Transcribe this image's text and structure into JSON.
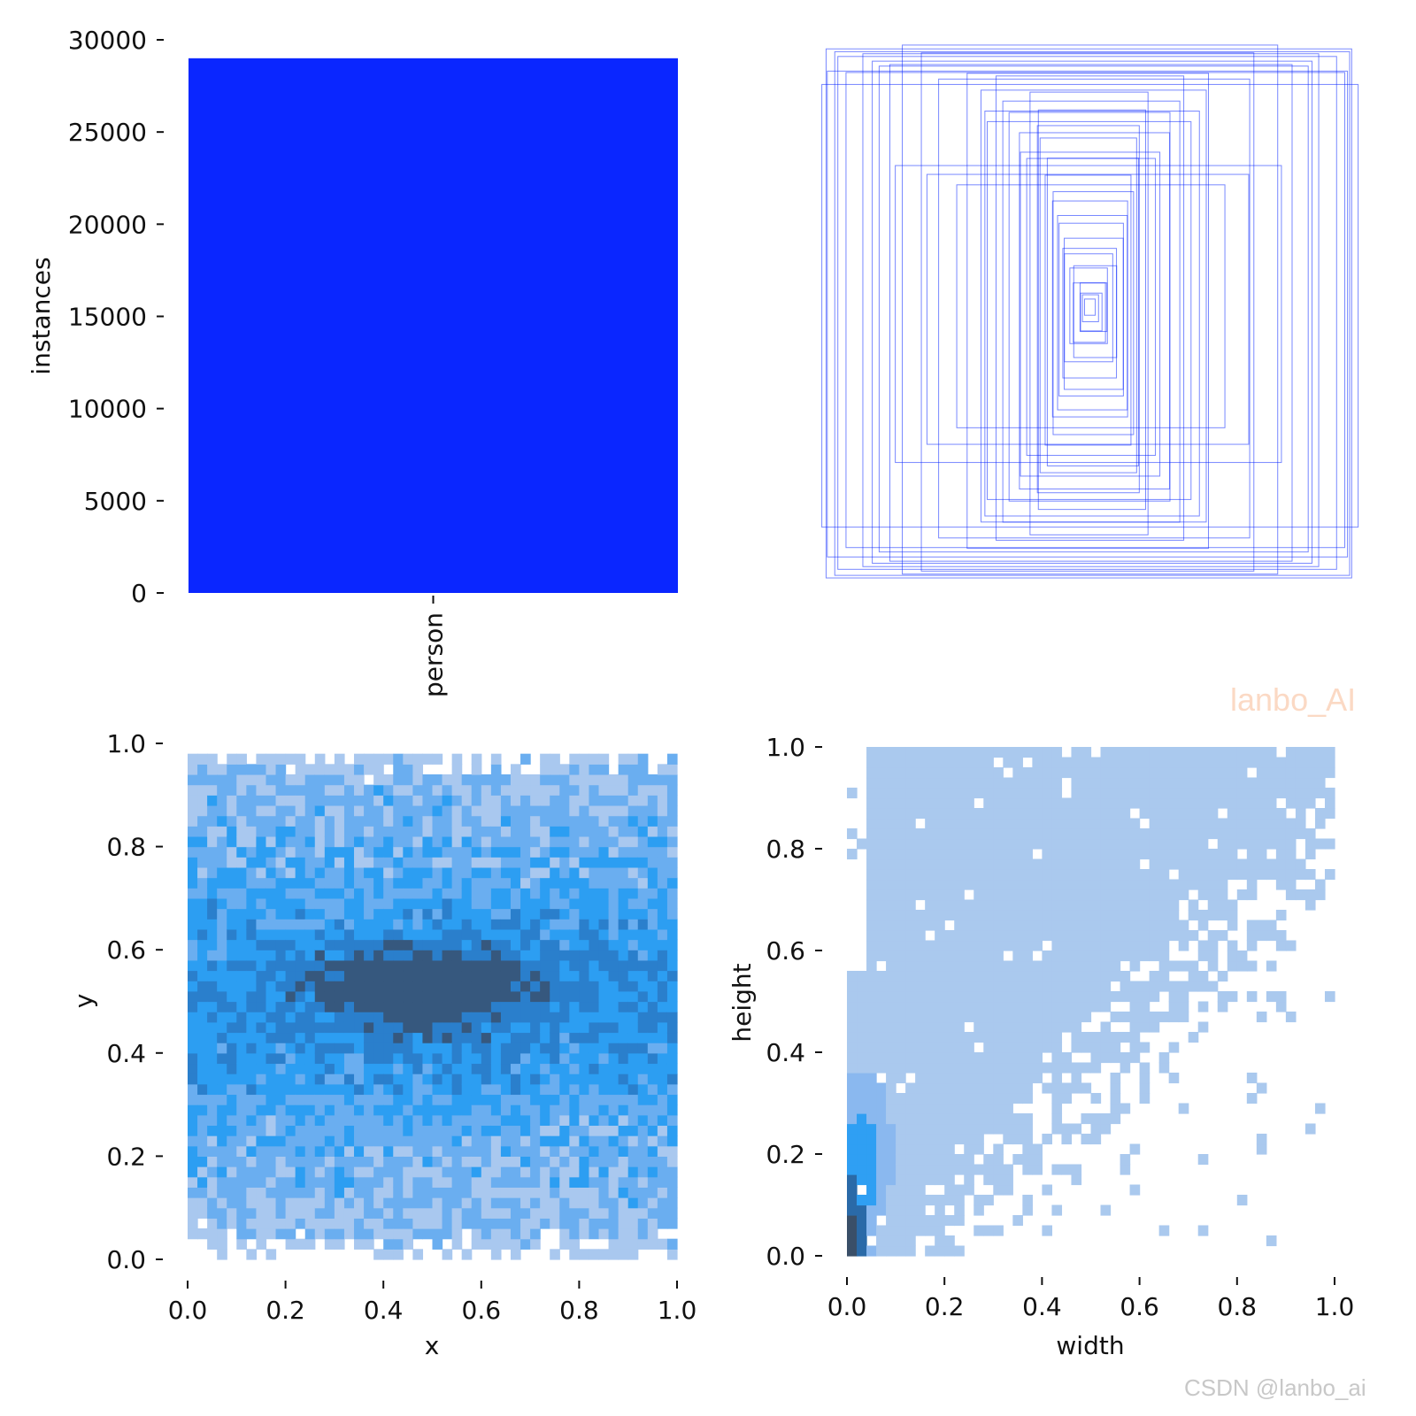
{
  "watermarks": {
    "corner_tag": "lanbo_AI",
    "footer": "CSDN @lanbo_ai"
  },
  "chart_data": [
    {
      "panel": "class-histogram",
      "type": "bar",
      "categories": [
        "person"
      ],
      "values": [
        29000
      ],
      "ylabel": "instances",
      "xlabel": "",
      "ylim": [
        0,
        30000
      ],
      "yticks": [
        0,
        5000,
        10000,
        15000,
        20000,
        25000,
        30000
      ],
      "bar_color": "#0a26ff",
      "grid": false
    },
    {
      "panel": "box-overlay",
      "type": "scatter",
      "note_series": "overlaid bounding boxes centered in panel",
      "boxes_wh": [
        [
          0.98,
          0.98
        ],
        [
          0.96,
          0.97
        ],
        [
          0.93,
          0.95
        ],
        [
          1.0,
          0.82
        ],
        [
          0.97,
          0.9
        ],
        [
          0.93,
          0.88
        ],
        [
          0.85,
          0.95
        ],
        [
          0.82,
          0.93
        ],
        [
          0.8,
          0.9
        ],
        [
          0.75,
          0.92
        ],
        [
          0.7,
          0.98
        ],
        [
          0.62,
          0.96
        ],
        [
          0.58,
          0.85
        ],
        [
          0.72,
          0.55
        ],
        [
          0.6,
          0.5
        ],
        [
          0.5,
          0.45
        ],
        [
          0.45,
          0.88
        ],
        [
          0.42,
          0.8
        ],
        [
          0.4,
          0.75
        ],
        [
          0.38,
          0.7
        ],
        [
          0.35,
          0.86
        ],
        [
          0.33,
          0.78
        ],
        [
          0.3,
          0.72
        ],
        [
          0.28,
          0.66
        ],
        [
          0.26,
          0.6
        ],
        [
          0.24,
          0.55
        ],
        [
          0.22,
          0.82
        ],
        [
          0.2,
          0.74
        ],
        [
          0.19,
          0.68
        ],
        [
          0.18,
          0.62
        ],
        [
          0.17,
          0.57
        ],
        [
          0.16,
          0.5
        ],
        [
          0.15,
          0.45
        ],
        [
          0.14,
          0.4
        ],
        [
          0.13,
          0.36
        ],
        [
          0.12,
          0.32
        ],
        [
          0.11,
          0.28
        ],
        [
          0.1,
          0.24
        ],
        [
          0.09,
          0.2
        ],
        [
          0.08,
          0.17
        ],
        [
          0.07,
          0.14
        ],
        [
          0.06,
          0.11
        ],
        [
          0.05,
          0.09
        ],
        [
          0.04,
          0.07
        ],
        [
          0.03,
          0.05
        ],
        [
          0.02,
          0.03
        ]
      ],
      "stroke_color": "#0a26ff",
      "grid": false
    },
    {
      "panel": "xy-histogram",
      "type": "heatmap",
      "xlabel": "x",
      "ylabel": "y",
      "xlim": [
        0,
        1
      ],
      "ylim": [
        0,
        1
      ],
      "xticks": [
        "0.0",
        "0.2",
        "0.4",
        "0.6",
        "0.8",
        "1.0"
      ],
      "yticks": [
        "0.0",
        "0.2",
        "0.4",
        "0.6",
        "0.8",
        "1.0"
      ],
      "bins": 50,
      "data_extent": {
        "x": [
          0.0,
          1.0
        ],
        "y": [
          0.0,
          0.98
        ]
      },
      "peak_center": {
        "x": 0.48,
        "y": 0.53
      },
      "colors": [
        "#a9c8ef",
        "#6aaef0",
        "#2c9ef2",
        "#2a7fcc",
        "#36587e"
      ]
    },
    {
      "panel": "wh-histogram",
      "type": "heatmap",
      "xlabel": "width",
      "ylabel": "height",
      "xlim": [
        0,
        1
      ],
      "ylim": [
        0,
        1
      ],
      "xticks": [
        "0.0",
        "0.2",
        "0.4",
        "0.6",
        "0.8",
        "1.0"
      ],
      "yticks": [
        "0.0",
        "0.2",
        "0.4",
        "0.6",
        "0.8",
        "1.0"
      ],
      "bins": 50,
      "peak_center": {
        "width": 0.02,
        "height": 0.05
      },
      "colors": [
        "#aac9ee",
        "#8ab8ef",
        "#2f9ff3",
        "#2a6aa8",
        "#3a4f68"
      ]
    }
  ]
}
